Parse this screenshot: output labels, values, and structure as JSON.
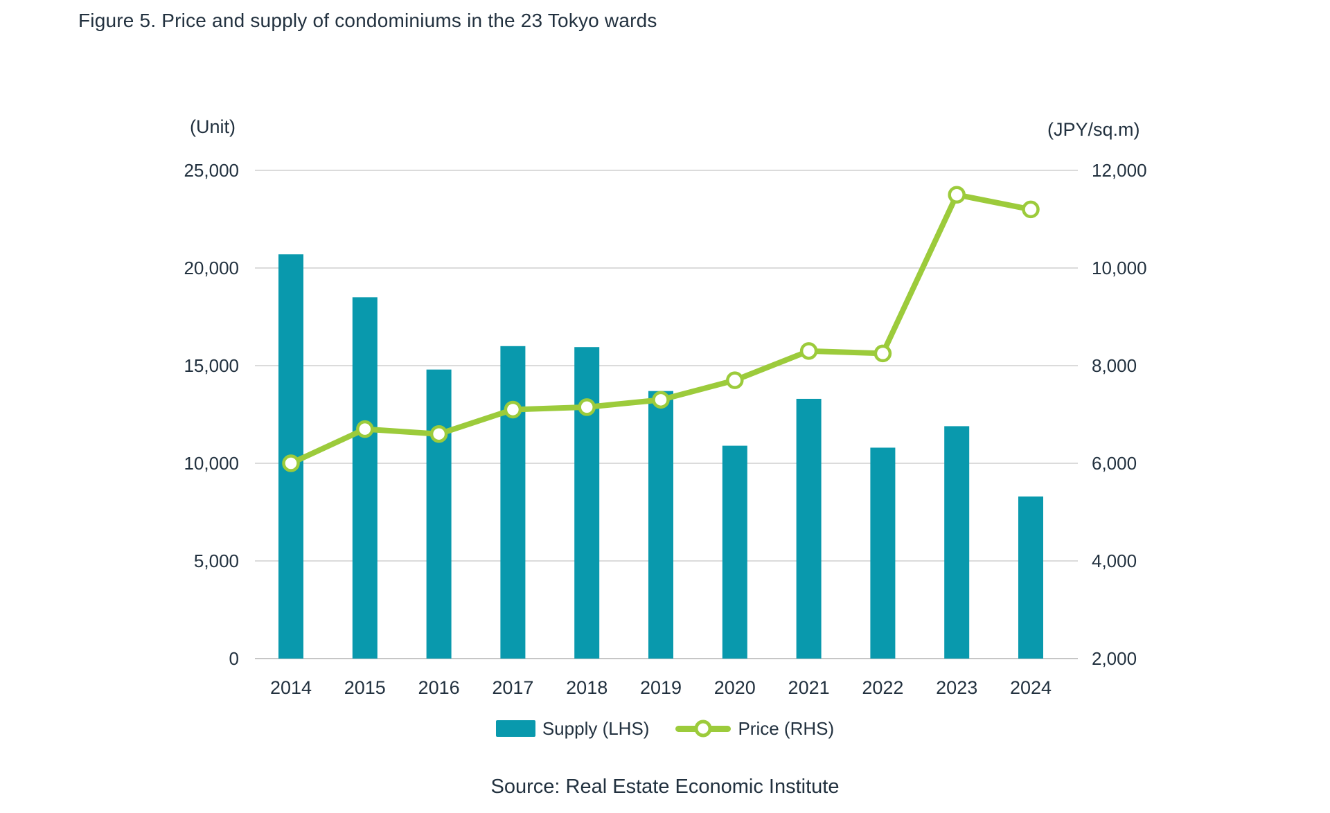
{
  "figure": {
    "title": "Figure 5. Price and supply of condominiums in the 23 Tokyo wards",
    "source": "Source: Real Estate Economic Institute",
    "left_axis_unit": "(Unit)",
    "right_axis_unit": "(JPY/sq.m)"
  },
  "legend": {
    "supply": "Supply (LHS)",
    "price": "Price (RHS)"
  },
  "colors": {
    "supply": "#0999AD",
    "price": "#9CCB3B",
    "grid": "#DBDBDB",
    "baseline": "#C6C6C6",
    "text": "#22313F"
  },
  "chart_data": {
    "type": "bar",
    "title": "Figure 5. Price and supply of condominiums in the 23 Tokyo wards",
    "categories": [
      "2014",
      "2015",
      "2016",
      "2017",
      "2018",
      "2019",
      "2020",
      "2021",
      "2022",
      "2023",
      "2024"
    ],
    "series": [
      {
        "name": "Supply (LHS)",
        "type": "bar",
        "axis": "left",
        "values": [
          20700,
          18500,
          14800,
          16000,
          15950,
          13700,
          10900,
          13300,
          10800,
          11900,
          8300
        ]
      },
      {
        "name": "Price (RHS)",
        "type": "line",
        "axis": "right",
        "values": [
          6000,
          6700,
          6600,
          7100,
          7150,
          7300,
          7700,
          8300,
          8250,
          11500,
          11200
        ]
      }
    ],
    "left_axis": {
      "label": "(Unit)",
      "min": 0,
      "max": 25000,
      "ticks": [
        0,
        5000,
        10000,
        15000,
        20000,
        25000
      ]
    },
    "right_axis": {
      "label": "(JPY/sq.m)",
      "min": 2000,
      "max": 12000,
      "ticks": [
        2000,
        4000,
        6000,
        8000,
        10000,
        12000
      ]
    },
    "grid": true,
    "legend_position": "bottom"
  }
}
